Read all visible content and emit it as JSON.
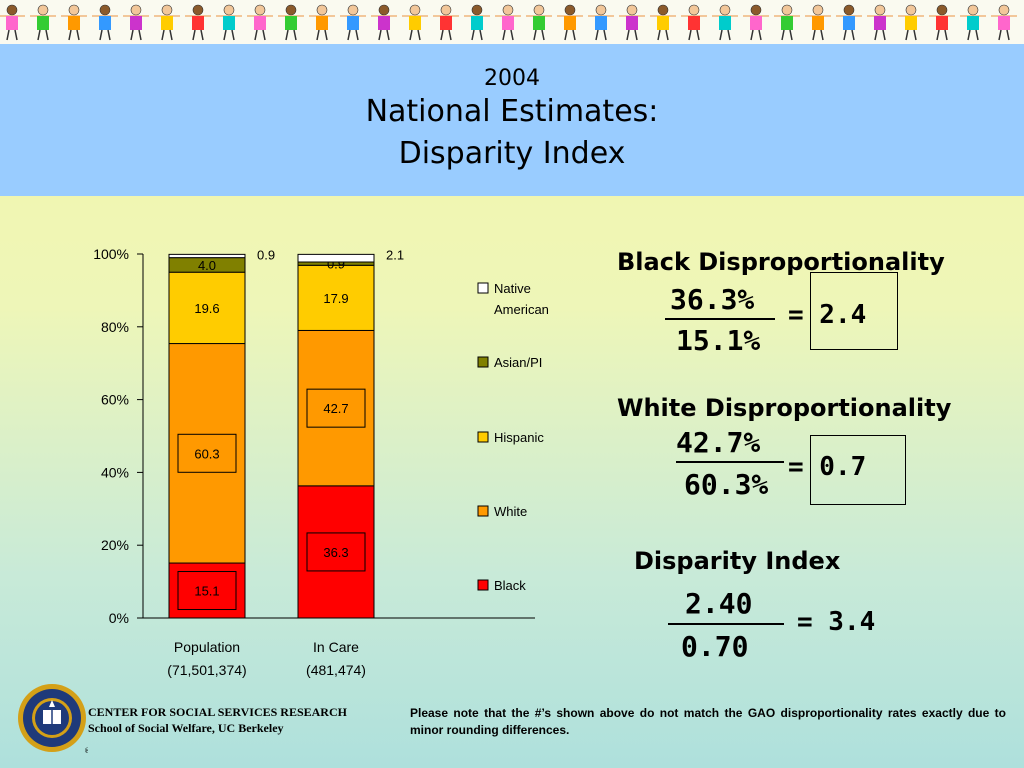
{
  "title": {
    "year": "2004",
    "main": "National Estimates:",
    "sub": "Disparity Index"
  },
  "chart_data": {
    "type": "bar",
    "stacked": true,
    "categories": [
      "Population",
      "In Care"
    ],
    "category_sublabels": [
      "(71,501,374)",
      "(481,474)"
    ],
    "series": [
      {
        "name": "Black",
        "values": [
          15.1,
          36.3
        ],
        "color": "#ff0000"
      },
      {
        "name": "White",
        "values": [
          60.3,
          42.7
        ],
        "color": "#ff9900"
      },
      {
        "name": "Hispanic",
        "values": [
          19.6,
          17.9
        ],
        "color": "#ffcc00"
      },
      {
        "name": "Asian/PI",
        "values": [
          4.0,
          0.9
        ],
        "color": "#808000"
      },
      {
        "name": "Native American",
        "values": [
          0.9,
          2.1
        ],
        "color": "#ffffff"
      }
    ],
    "ylim": [
      0,
      100
    ],
    "yticks": [
      "0%",
      "20%",
      "40%",
      "60%",
      "80%",
      "100%"
    ],
    "legend_position": "right",
    "legend": [
      "Native American",
      "Asian/PI",
      "Hispanic",
      "White",
      "Black"
    ],
    "boxed_labels": [
      "Black",
      "White"
    ],
    "outside_labels": [
      "Native American"
    ]
  },
  "calc": {
    "black": {
      "title": "Black Disproportionality",
      "num": "36.3%",
      "den": "15.1%",
      "result": "= 2.4"
    },
    "white": {
      "title": "White Disproportionality",
      "num": "42.7%",
      "den": "60.3%",
      "result": "= 0.7"
    },
    "index": {
      "title": "Disparity Index",
      "num": "2.40",
      "den": "0.70",
      "result": "= 3.4"
    }
  },
  "footer": {
    "org_line1": "CENTER FOR SOCIAL SERVICES RESEARCH",
    "org_line2": "School of Social Welfare, UC Berkeley",
    "note": "Please note that the #’s shown above do not match the GAO disproportionality rates exactly due to minor rounding differences."
  }
}
